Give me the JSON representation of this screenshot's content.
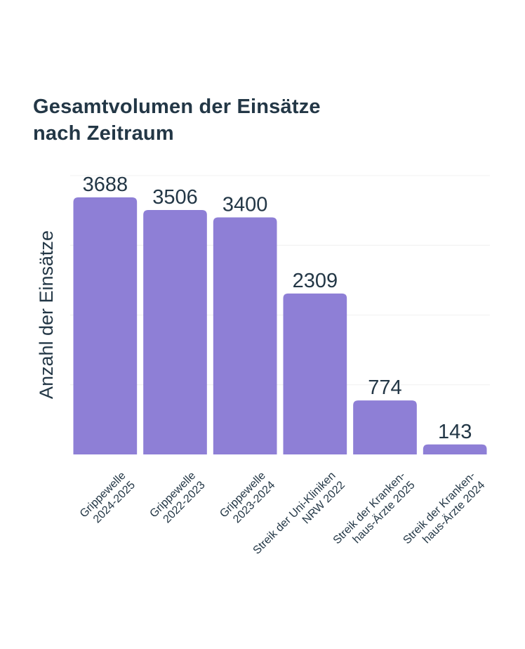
{
  "chart_data": {
    "type": "bar",
    "title_lines": [
      "Gesamtvolumen der Einsätze",
      "nach Zeitraum"
    ],
    "xlabel": "",
    "ylabel": "Anzahl der Einsätze",
    "ylim": [
      0,
      4000
    ],
    "grid": true,
    "gridlines": [
      1000,
      2000,
      3000,
      4000
    ],
    "categories": [
      [
        "Grippewelle",
        "2024-2025"
      ],
      [
        "Grippewelle",
        "2022-2023"
      ],
      [
        "Grippewelle",
        "2023-2024"
      ],
      [
        "Streik der Uni-Kliniken",
        "NRW 2022"
      ],
      [
        "Streik der Kranken-",
        "haus-Ärzte 2025"
      ],
      [
        "Streik der Kranken-",
        "haus-Ärzte 2024"
      ]
    ],
    "values": [
      3688,
      3506,
      3400,
      2309,
      774,
      143
    ],
    "data_labels": [
      "3688",
      "3506",
      "3400",
      "2309",
      "774",
      "143"
    ],
    "colors": {
      "bar": "#8e7fd6",
      "text": "#233746",
      "grid": "#f3f3f3"
    }
  }
}
